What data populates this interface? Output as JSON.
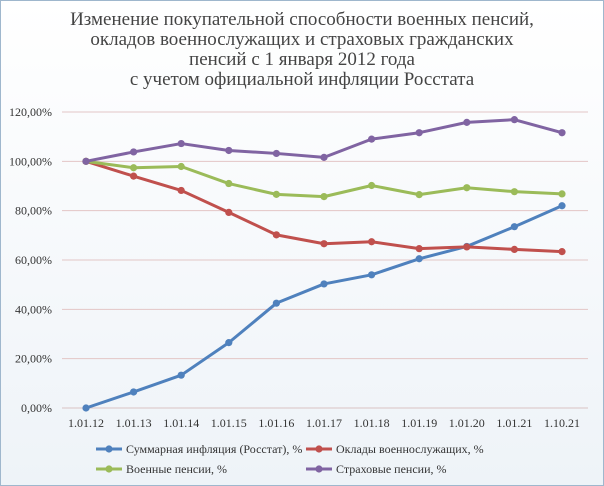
{
  "chart_data": {
    "type": "line",
    "title_lines": [
      "Изменение покупательной способности военных пенсий,",
      "окладов военнослужащих и страховых гражданских",
      "пенсий с 1 января 2012 года",
      "с учетом официальной инфляции Росстата"
    ],
    "categories": [
      "1.01.12",
      "1.01.13",
      "1.01.14",
      "1.01.15",
      "1.01.16",
      "1.01.17",
      "1.01.18",
      "1.01.19",
      "1.01.20",
      "1.01.21",
      "1.10.21"
    ],
    "y_ticks": [
      "0,00%",
      "20,00%",
      "40,00%",
      "60,00%",
      "80,00%",
      "100,00%",
      "120,00%"
    ],
    "ylim": [
      0,
      120
    ],
    "grid": true,
    "legend_position": "bottom",
    "series": [
      {
        "name": "Суммарная инфляция (Росстат), %",
        "color": "#4f81bd",
        "values": [
          0,
          6.5,
          13.3,
          26.5,
          42.5,
          50.3,
          54.0,
          60.5,
          65.5,
          73.5,
          82.0
        ]
      },
      {
        "name": "Оклады военнослужащих, %",
        "color": "#c0504d",
        "values": [
          100,
          94.0,
          88.2,
          79.3,
          70.2,
          66.6,
          67.4,
          64.6,
          65.3,
          64.3,
          63.4
        ]
      },
      {
        "name": "Военные пенсии, %",
        "color": "#9bbb59",
        "values": [
          100,
          97.4,
          97.9,
          91.0,
          86.6,
          85.7,
          90.2,
          86.5,
          89.3,
          87.7,
          86.8
        ]
      },
      {
        "name": "Страховые пенсии, %",
        "color": "#8064a2",
        "values": [
          100,
          103.8,
          107.2,
          104.4,
          103.2,
          101.6,
          109.0,
          111.6,
          115.8,
          116.9,
          111.6
        ]
      }
    ]
  }
}
